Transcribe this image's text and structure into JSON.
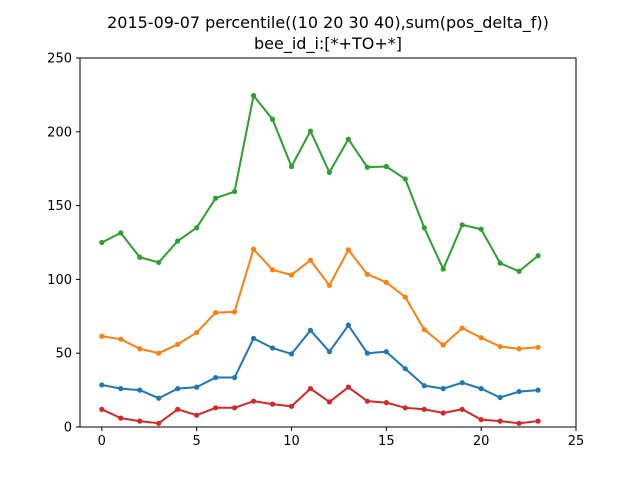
{
  "chart_data": {
    "type": "line",
    "title_lines": [
      "2015-09-07 percentile((10 20 30 40),sum(pos_delta_f))",
      "bee_id_i:[*+TO+*]"
    ],
    "xlabel": "",
    "ylabel": "",
    "xlim": [
      -1.15,
      25
    ],
    "ylim": [
      0,
      250
    ],
    "x_ticks": [
      0,
      5,
      10,
      15,
      20,
      25
    ],
    "y_ticks": [
      0,
      50,
      100,
      150,
      200,
      250
    ],
    "grid": false,
    "x": [
      0,
      1,
      2,
      3,
      4,
      5,
      6,
      7,
      8,
      9,
      10,
      11,
      12,
      13,
      14,
      15,
      16,
      17,
      18,
      19,
      20,
      21,
      22,
      23
    ],
    "series": [
      {
        "color": "#d62728",
        "values": [
          12,
          6,
          4,
          2.5,
          12,
          8,
          13,
          13,
          17.5,
          15.5,
          14,
          26,
          17,
          27,
          17.5,
          16.5,
          13,
          12,
          9.5,
          12,
          5,
          4,
          2.5,
          4
        ]
      },
      {
        "color": "#1f77b4",
        "values": [
          28.5,
          26,
          25,
          19.5,
          26,
          27,
          33.5,
          33.5,
          60,
          53.5,
          49.5,
          65.5,
          51,
          69,
          50,
          51,
          39.5,
          28,
          26,
          30,
          26,
          20,
          24,
          25
        ]
      },
      {
        "color": "#ff7f0e",
        "values": [
          61.5,
          59.5,
          53,
          50,
          56,
          64,
          77.5,
          78,
          120.5,
          106.5,
          103,
          113,
          96,
          120,
          103.5,
          98,
          88,
          66,
          55.5,
          67,
          60.5,
          54.5,
          53,
          54
        ]
      },
      {
        "color": "#2ca02c",
        "values": [
          125,
          131.5,
          115,
          111.5,
          126,
          135,
          155,
          159.5,
          224.5,
          208.5,
          176.5,
          200.5,
          172.5,
          195,
          176,
          176.5,
          168,
          135,
          107,
          137,
          134,
          111,
          105.5,
          116
        ]
      }
    ]
  }
}
